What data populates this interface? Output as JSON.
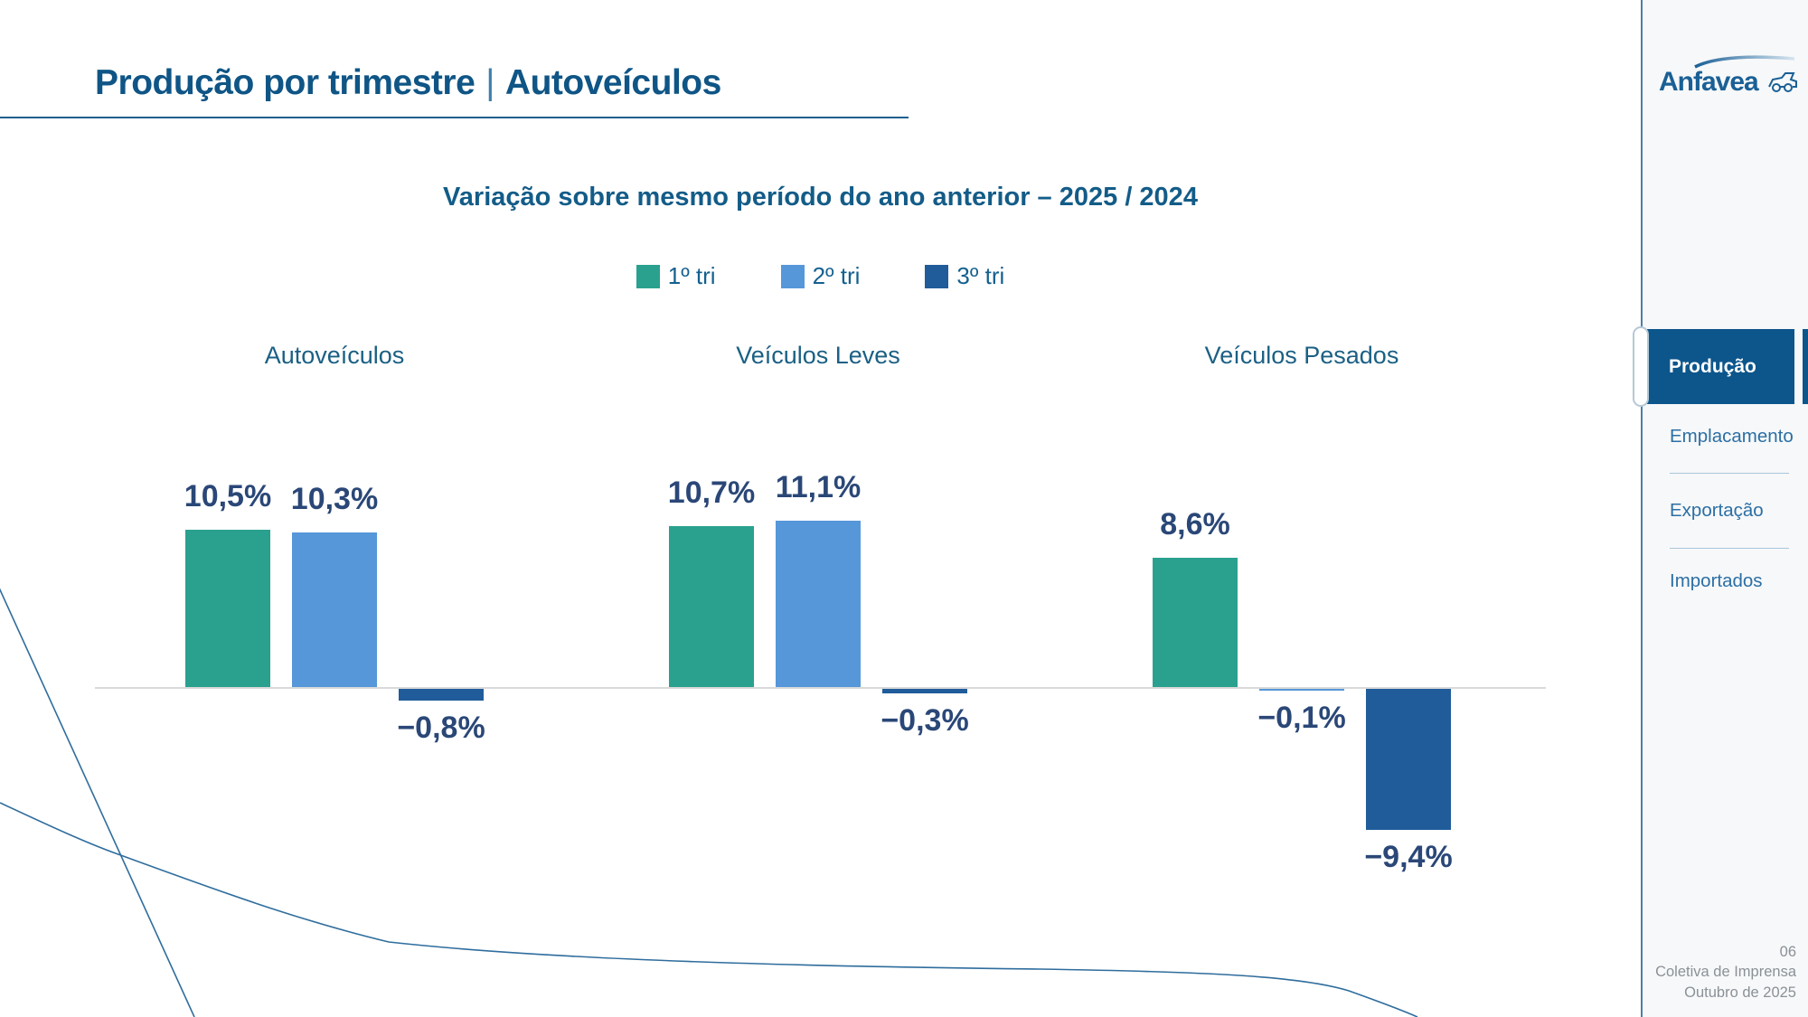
{
  "title": {
    "main": "Produção por trimestre",
    "separator": "|",
    "highlight": "Autoveículos"
  },
  "chart": {
    "subtitle": "Variação sobre mesmo período do ano anterior – 2025 / 2024"
  },
  "chart_data": {
    "type": "bar",
    "title": "Variação sobre mesmo período do ano anterior – 2025 / 2024",
    "categories": [
      "Autoveículos",
      "Veículos Leves",
      "Veículos Pesados"
    ],
    "series": [
      {
        "name": "1º tri",
        "color": "#2AA18F",
        "values": [
          10.5,
          10.7,
          8.6
        ],
        "labels": [
          "10,5%",
          "10,7%",
          "8,6%"
        ]
      },
      {
        "name": "2º tri",
        "color": "#5697D9",
        "values": [
          10.3,
          11.1,
          -0.1
        ],
        "labels": [
          "10,3%",
          "11,1%",
          "−0,1%"
        ]
      },
      {
        "name": "3º tri",
        "color": "#205C9A",
        "values": [
          -0.8,
          -0.3,
          -9.4
        ],
        "labels": [
          "−0,8%",
          "−0,3%",
          "−9,4%"
        ]
      }
    ],
    "unit": "%",
    "xlabel": "",
    "ylabel": "",
    "ylim": [
      -10,
      12
    ],
    "grid": false,
    "axis": "zero-baseline-only",
    "legend_position": "top-center"
  },
  "sidebar": {
    "logo_text": "Anfavea",
    "items": [
      {
        "label": "Produção",
        "active": true
      },
      {
        "label": "Emplacamento",
        "active": false
      },
      {
        "label": "Exportação",
        "active": false
      },
      {
        "label": "Importados",
        "active": false
      }
    ]
  },
  "footer": {
    "page": "06",
    "line1": "Coletiva de Imprensa",
    "line2": "Outubro de 2025"
  },
  "colors": {
    "accent": "#0C568C",
    "title_blue": "#0F5586",
    "bar_teal": "#2AA18F",
    "bar_light_blue": "#5697D9",
    "bar_dark_blue": "#205C9A",
    "axis_gray": "#D9D9D9"
  }
}
